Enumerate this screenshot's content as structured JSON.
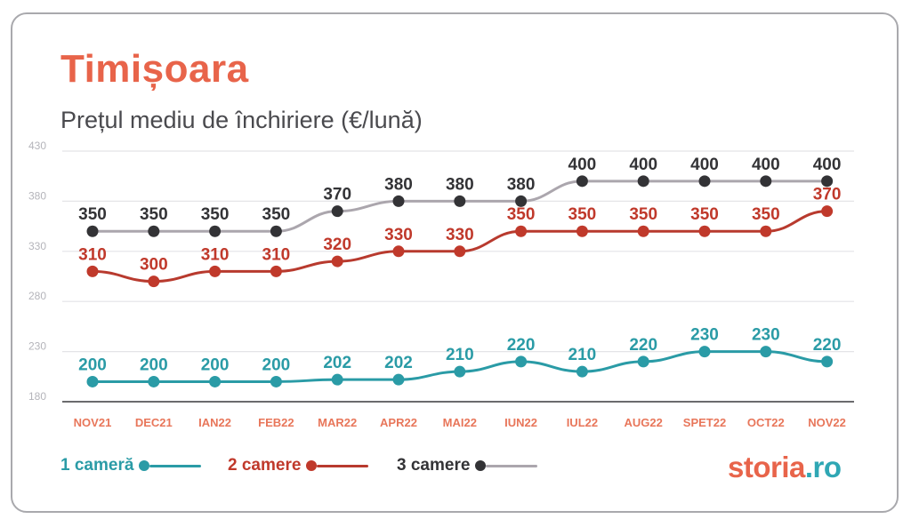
{
  "title": "Timișoara",
  "subtitle": "Prețul mediu de închiriere (€/lună)",
  "brand": {
    "name": "storia",
    "tld": ".ro"
  },
  "chart_data": {
    "type": "line",
    "categories": [
      "NOV21",
      "DEC21",
      "IAN22",
      "FEB22",
      "MAR22",
      "APR22",
      "MAI22",
      "IUN22",
      "IUL22",
      "AUG22",
      "SPET22",
      "OCT22",
      "NOV22"
    ],
    "y_ticks": [
      430,
      380,
      330,
      280,
      230,
      180
    ],
    "ylim": [
      180,
      430
    ],
    "grid": true,
    "legend_position": "bottom-left",
    "series": [
      {
        "name": "1 cameră",
        "color": "#2a9ba6",
        "line_color": "#2a9ba6",
        "values": [
          200,
          200,
          200,
          200,
          202,
          202,
          210,
          220,
          210,
          220,
          230,
          230,
          220
        ]
      },
      {
        "name": "2 camere",
        "color": "#c0392b",
        "line_color": "#b83a2e",
        "values": [
          310,
          300,
          310,
          310,
          320,
          330,
          330,
          350,
          350,
          350,
          350,
          350,
          370
        ]
      },
      {
        "name": "3 camere",
        "color": "#333336",
        "line_color": "#aba6ad",
        "values": [
          350,
          350,
          350,
          350,
          370,
          380,
          380,
          380,
          400,
          400,
          400,
          400,
          400
        ]
      }
    ]
  }
}
